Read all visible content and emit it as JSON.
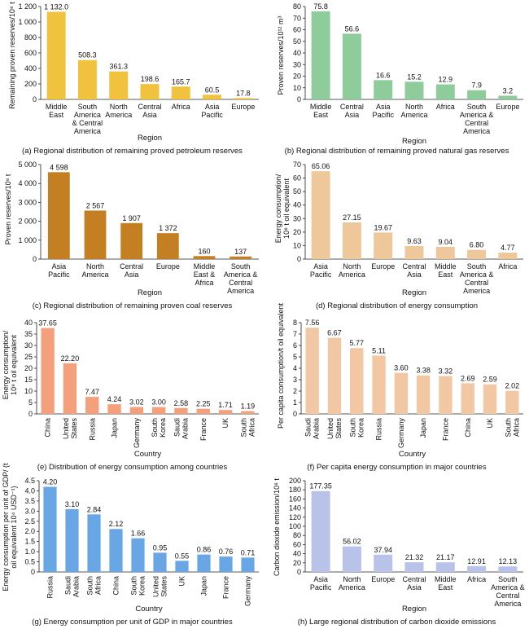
{
  "chart_data": [
    {
      "id": "a",
      "type": "bar",
      "caption": "(a) Regional distribution of remaining proved petroleum reserves",
      "ylabel": "Remaining proven reserves/10⁸ t",
      "xlabel": "Region",
      "categories": [
        "Middle East",
        "South America & Central America",
        "North America",
        "Central Asia",
        "Africa",
        "Asia Pacific",
        "Europe"
      ],
      "values": [
        1132.0,
        508.3,
        361.3,
        198.6,
        165.7,
        60.5,
        17.8
      ],
      "value_labels": [
        "1 132.0",
        "508.3",
        "361.3",
        "198.6",
        "165.7",
        "60.5",
        "17.8"
      ],
      "ylim": [
        0,
        1200
      ],
      "yticks": [
        "0",
        "200",
        "400",
        "600",
        "800",
        "1 000",
        "1 200"
      ],
      "color": "#f0c23e"
    },
    {
      "id": "b",
      "type": "bar",
      "caption": "(b) Regional distribution of remaining proved natural gas reserves",
      "ylabel": "Proven reserves/10¹² m³",
      "xlabel": "Region",
      "categories": [
        "Middle East",
        "Central Asia",
        "Asia Pacific",
        "North America",
        "Africa",
        "South America & Central America",
        "Europe"
      ],
      "values": [
        75.8,
        56.6,
        16.6,
        15.2,
        12.9,
        7.9,
        3.2
      ],
      "value_labels": [
        "75.8",
        "56.6",
        "16.6",
        "15.2",
        "12.9",
        "7.9",
        "3.2"
      ],
      "ylim": [
        0,
        80
      ],
      "yticks": [
        "0",
        "10",
        "20",
        "30",
        "40",
        "50",
        "60",
        "70",
        "80"
      ],
      "color": "#8fcc9c"
    },
    {
      "id": "c",
      "type": "bar",
      "caption": "(c) Regional distribution of remaining proven coal reserves",
      "ylabel": "Proven reserves/10⁸ t",
      "xlabel": "Region",
      "categories": [
        "Asia Pacific",
        "North America",
        "Central Asia",
        "Europe",
        "Middle East & Africa",
        "South America & Central America"
      ],
      "values": [
        4598,
        2567,
        1907,
        1372,
        160,
        137
      ],
      "value_labels": [
        "4 598",
        "2 567",
        "1 907",
        "1 372",
        "160",
        "137"
      ],
      "ylim": [
        0,
        5000
      ],
      "yticks": [
        "0",
        "1 000",
        "2 000",
        "3 000",
        "4 000",
        "5 000"
      ],
      "color": "#c47f22"
    },
    {
      "id": "d",
      "type": "bar",
      "caption": "(d) Regional distribution of energy consumption",
      "ylabel": "Energy consumption/ 10⁸ t oil equivalent",
      "xlabel": "Region",
      "categories": [
        "Asia Pacific",
        "North America",
        "Europe",
        "Central Asia",
        "Middle East",
        "South America & Central America",
        "Africa"
      ],
      "values": [
        65.06,
        27.15,
        19.67,
        9.63,
        9.04,
        6.8,
        4.77
      ],
      "value_labels": [
        "65.06",
        "27.15",
        "19.67",
        "9.63",
        "9.04",
        "6.80",
        "4.77"
      ],
      "ylim": [
        0,
        70
      ],
      "yticks": [
        "0",
        "10",
        "20",
        "30",
        "40",
        "50",
        "60",
        "70"
      ],
      "color": "#eec79a"
    },
    {
      "id": "e",
      "type": "bar",
      "caption": "(e) Distribution of energy consumption among countries",
      "ylabel": "Energy consumption/ 10⁸ t oil equivalent",
      "xlabel": "Country",
      "categories": [
        "China",
        "United States",
        "Russia",
        "Japan",
        "Germany",
        "South Korea",
        "Saudi Arabia",
        "France",
        "UK",
        "South Africa"
      ],
      "values": [
        37.65,
        22.2,
        7.47,
        4.24,
        3.02,
        3.0,
        2.58,
        2.25,
        1.71,
        1.19
      ],
      "value_labels": [
        "37.65",
        "22.20",
        "7.47",
        "4.24",
        "3.02",
        "3.00",
        "2.58",
        "2.25",
        "1.71",
        "1.19"
      ],
      "ylim": [
        0,
        40
      ],
      "yticks": [
        "0",
        "5",
        "10",
        "15",
        "20",
        "25",
        "30",
        "35",
        "40"
      ],
      "color": "#f4a07c"
    },
    {
      "id": "f",
      "type": "bar",
      "caption": "(f) Per capita energy consumption in major countries",
      "ylabel": "Per capita consumption/t oil equivalent",
      "xlabel": "Country",
      "categories": [
        "Saudi Arabia",
        "United States",
        "South Korea",
        "Russia",
        "Germany",
        "Japan",
        "France",
        "China",
        "UK",
        "South Africa"
      ],
      "values": [
        7.56,
        6.67,
        5.77,
        5.11,
        3.6,
        3.38,
        3.32,
        2.69,
        2.59,
        2.02
      ],
      "value_labels": [
        "7.56",
        "6.67",
        "5.77",
        "5.11",
        "3.60",
        "3.38",
        "3.32",
        "2.69",
        "2.59",
        "2.02"
      ],
      "ylim": [
        0,
        8
      ],
      "yticks": [
        "0",
        "1",
        "2",
        "3",
        "4",
        "5",
        "6",
        "7",
        "8"
      ],
      "color": "#f2c7a4"
    },
    {
      "id": "g",
      "type": "bar",
      "caption": "(g) Energy consumption per unit of GDP in major countries",
      "ylabel": "Energy consumption per unit of GDP/ (t oil equivalent 10⁴ USD⁻¹)",
      "xlabel": "Country",
      "categories": [
        "Russia",
        "Saudi Arabia",
        "South Africa",
        "China",
        "South Korea",
        "United States",
        "UK",
        "Japan",
        "France",
        "Germany"
      ],
      "values": [
        4.2,
        3.1,
        2.84,
        2.12,
        1.66,
        0.95,
        0.55,
        0.86,
        0.76,
        0.71
      ],
      "value_labels": [
        "4.20",
        "3.10",
        "2.84",
        "2.12",
        "1.66",
        "0.95",
        "0.55",
        "0.86",
        "0.76",
        "0.71"
      ],
      "ylim": [
        0,
        4.5
      ],
      "yticks": [
        "0",
        "0.5",
        "1.0",
        "1.5",
        "2.0",
        "2.5",
        "3.0",
        "3.5",
        "4.0",
        "4.5"
      ],
      "color": "#68a6e6"
    },
    {
      "id": "h",
      "type": "bar",
      "caption": "(h) Large regional distribution of carbon dioxide emissions",
      "ylabel": "Carbon dioxide emission/10⁸ t",
      "xlabel": "Region",
      "categories": [
        "Asia Pacific",
        "North America",
        "Europe",
        "Central Asia",
        "Middle East",
        "Africa",
        "South America & Central America"
      ],
      "values": [
        177.35,
        56.02,
        37.94,
        21.32,
        21.17,
        12.91,
        12.13
      ],
      "value_labels": [
        "177.35",
        "56.02",
        "37.94",
        "21.32",
        "21.17",
        "12.91",
        "12.13"
      ],
      "ylim": [
        0,
        200
      ],
      "yticks": [
        "0",
        "20",
        "40",
        "60",
        "80",
        "100",
        "120",
        "140",
        "160",
        "180",
        "200"
      ],
      "color": "#b9c3ea"
    }
  ]
}
